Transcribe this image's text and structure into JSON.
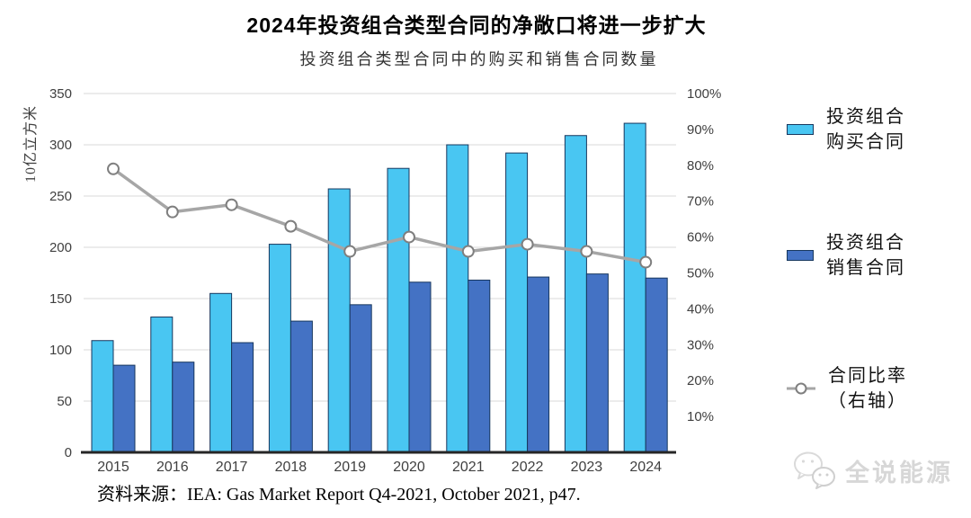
{
  "header": {
    "title": "2024年投资组合类型合同的净敞口将进一步扩大",
    "subtitle": "投资组合类型合同中的购买和销售合同数量"
  },
  "chart_data": {
    "type": "bar",
    "title": "2024年投资组合类型合同的净敞口将进一步扩大",
    "subtitle": "投资组合类型合同中的购买和销售合同数量",
    "categories": [
      "2015",
      "2016",
      "2017",
      "2018",
      "2019",
      "2020",
      "2021",
      "2022",
      "2023",
      "2024"
    ],
    "series": [
      {
        "name": "投资组合购买合同",
        "type": "bar",
        "axis": "left",
        "color": "#49C6F2",
        "border": "#17375E",
        "values": [
          109,
          132,
          155,
          203,
          257,
          277,
          300,
          292,
          309,
          321
        ]
      },
      {
        "name": "投资组合销售合同",
        "type": "bar",
        "axis": "left",
        "color": "#4472C4",
        "border": "#17375E",
        "values": [
          85,
          88,
          107,
          128,
          144,
          166,
          168,
          171,
          174,
          170
        ]
      },
      {
        "name": "合同比率（右轴）",
        "type": "line",
        "axis": "right",
        "color": "#A6A6A6",
        "marker": "circle",
        "marker_fill": "#FFFFFF",
        "marker_stroke": "#7F7F7F",
        "values": [
          79,
          67,
          69,
          63,
          56,
          60,
          56,
          58,
          56,
          53
        ]
      }
    ],
    "left_axis": {
      "label": "10亿立方米",
      "min": 0,
      "max": 350,
      "step": 50,
      "tick_labels": [
        "350",
        "300",
        "250",
        "200",
        "150",
        "100",
        "50",
        "0"
      ]
    },
    "right_axis": {
      "min": 0,
      "max": 100,
      "step": 10,
      "unit": "%",
      "tick_labels": [
        "100%",
        "90%",
        "80%",
        "70%",
        "60%",
        "50%",
        "40%",
        "30%",
        "20%",
        "10%"
      ]
    },
    "grid": true,
    "gridline_color": "#D9D9D9",
    "axis_line_color": "#262626",
    "legend_position": "right"
  },
  "legend": {
    "items": [
      {
        "line1": "投资组合",
        "line2": "购买合同",
        "color": "#49C6F2",
        "marker": "bar-swatch"
      },
      {
        "line1": "投资组合",
        "line2": "销售合同",
        "color": "#4472C4",
        "marker": "bar-swatch"
      },
      {
        "line1": "合同比率",
        "line2": "（右轴）",
        "color": "#A6A6A6",
        "marker": "line-circle"
      }
    ]
  },
  "footer": {
    "source": "资料来源：IEA: Gas Market Report Q4-2021, October 2021, p47."
  },
  "watermark": {
    "text": "全说能源",
    "color": "#D7D7D7"
  }
}
